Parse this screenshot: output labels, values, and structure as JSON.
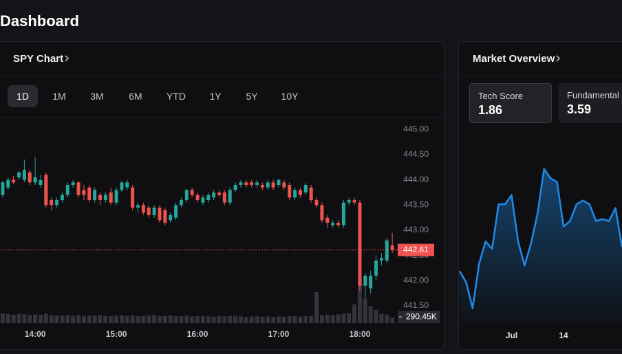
{
  "header": {
    "title": "Dashboard"
  },
  "spy_panel": {
    "title": "SPY Chart",
    "ranges": [
      "1D",
      "1M",
      "3M",
      "6M",
      "YTD",
      "1Y",
      "5Y",
      "10Y"
    ],
    "active_range": 0,
    "chart_data": {
      "type": "candlestick",
      "x": [
        816,
        820,
        824,
        828,
        832,
        836,
        840,
        844,
        848,
        852,
        856,
        860,
        864,
        868,
        872,
        876,
        880,
        884,
        888,
        892,
        896,
        900,
        904,
        908,
        912,
        916,
        920,
        924,
        928,
        932,
        936,
        940,
        944,
        948,
        952,
        956,
        960,
        964,
        968,
        972,
        976,
        980,
        984,
        988,
        992,
        996,
        1000,
        1004,
        1008,
        1012,
        1016,
        1020,
        1024,
        1028,
        1032,
        1036,
        1040,
        1044,
        1048,
        1052,
        1056,
        1060,
        1064,
        1068,
        1072,
        1076,
        1080,
        1084,
        1088,
        1092,
        1096,
        1100,
        1104
      ],
      "open": [
        443.7,
        443.85,
        444.0,
        444.05,
        444.0,
        444.15,
        443.95,
        443.9,
        444.1,
        443.6,
        443.5,
        443.6,
        443.7,
        443.9,
        443.95,
        443.8,
        443.85,
        443.6,
        443.7,
        443.6,
        443.75,
        443.55,
        443.8,
        443.85,
        443.85,
        443.45,
        443.5,
        443.45,
        443.3,
        443.45,
        443.4,
        443.2,
        443.25,
        443.5,
        443.6,
        443.8,
        443.7,
        443.55,
        443.6,
        443.65,
        443.75,
        443.75,
        443.55,
        443.8,
        443.9,
        443.95,
        443.95,
        443.9,
        443.9,
        443.85,
        443.95,
        443.9,
        443.95,
        443.9,
        443.65,
        443.8,
        443.75,
        443.85,
        443.6,
        443.5,
        443.25,
        443.1,
        443.15,
        443.1,
        443.55,
        443.6,
        443.55,
        441.9,
        441.85,
        442.1,
        442.4,
        442.4,
        442.7
      ],
      "high": [
        443.98,
        444.05,
        444.08,
        444.18,
        444.4,
        444.2,
        444.45,
        444.1,
        444.15,
        443.65,
        443.65,
        443.75,
        443.95,
        444.0,
        443.98,
        443.9,
        443.9,
        443.85,
        443.75,
        443.75,
        443.85,
        443.85,
        443.98,
        444.0,
        443.9,
        443.55,
        443.55,
        443.5,
        443.5,
        443.5,
        443.45,
        443.35,
        443.55,
        443.65,
        443.82,
        443.85,
        443.75,
        443.7,
        443.75,
        443.8,
        443.8,
        443.8,
        443.85,
        443.95,
        444.0,
        444.0,
        444.0,
        444.0,
        443.95,
        444.0,
        444.0,
        444.02,
        444.0,
        443.95,
        443.85,
        443.85,
        443.95,
        443.9,
        443.65,
        443.55,
        443.3,
        443.2,
        443.2,
        443.6,
        443.65,
        443.65,
        443.6,
        442.15,
        442.2,
        442.5,
        442.55,
        442.85,
        442.95
      ],
      "low": [
        443.65,
        443.8,
        443.92,
        444.0,
        443.95,
        443.9,
        443.9,
        443.85,
        443.45,
        443.4,
        443.45,
        443.55,
        443.65,
        443.85,
        443.65,
        443.6,
        443.55,
        443.55,
        443.5,
        443.55,
        443.5,
        443.5,
        443.75,
        443.8,
        443.4,
        443.35,
        443.3,
        443.25,
        443.25,
        443.15,
        443.1,
        443.15,
        443.2,
        443.45,
        443.55,
        443.65,
        443.55,
        443.5,
        443.55,
        443.6,
        443.65,
        443.5,
        443.5,
        443.75,
        443.85,
        443.85,
        443.85,
        443.85,
        443.8,
        443.8,
        443.8,
        443.85,
        443.8,
        443.6,
        443.6,
        443.65,
        443.7,
        443.55,
        443.45,
        443.15,
        443.05,
        443.05,
        443.05,
        443.05,
        443.5,
        443.5,
        441.8,
        441.65,
        441.75,
        442.0,
        442.3,
        442.35,
        442.55
      ],
      "close": [
        443.95,
        444.0,
        443.95,
        444.15,
        444.2,
        443.95,
        444.05,
        444.0,
        443.5,
        443.5,
        443.6,
        443.7,
        443.9,
        443.95,
        443.7,
        443.7,
        443.6,
        443.8,
        443.6,
        443.7,
        443.55,
        443.8,
        443.95,
        443.95,
        443.45,
        443.5,
        443.35,
        443.3,
        443.45,
        443.2,
        443.15,
        443.3,
        443.5,
        443.6,
        443.8,
        443.7,
        443.6,
        443.65,
        443.7,
        443.75,
        443.7,
        443.55,
        443.8,
        443.9,
        443.95,
        443.9,
        443.9,
        443.95,
        443.85,
        443.95,
        443.85,
        444.0,
        443.85,
        443.65,
        443.8,
        443.7,
        443.9,
        443.6,
        443.5,
        443.2,
        443.15,
        443.15,
        443.1,
        443.55,
        443.6,
        443.55,
        441.9,
        442.1,
        442.1,
        442.4,
        442.45,
        442.8,
        442.61
      ],
      "volume": [
        520000,
        480000,
        450000,
        500000,
        470000,
        430000,
        460000,
        440000,
        500000,
        420000,
        410000,
        400000,
        430000,
        390000,
        420000,
        380000,
        400000,
        410000,
        430000,
        390000,
        370000,
        400000,
        420000,
        380000,
        410000,
        360000,
        380000,
        400000,
        420000,
        370000,
        390000,
        410000,
        380000,
        360000,
        400000,
        350000,
        370000,
        390000,
        360000,
        340000,
        380000,
        350000,
        370000,
        390000,
        360000,
        330000,
        350000,
        370000,
        340000,
        360000,
        330000,
        350000,
        340000,
        360000,
        380000,
        350000,
        370000,
        390000,
        1650000,
        420000,
        450000,
        430000,
        460000,
        500000,
        520000,
        1000000,
        2200000,
        1300000,
        900000,
        700000,
        500000,
        450000,
        290450
      ],
      "xlim": [
        814,
        1108
      ],
      "xticks": [
        {
          "value": 840,
          "label": "14:00"
        },
        {
          "value": 900,
          "label": "15:00"
        },
        {
          "value": 960,
          "label": "16:00"
        },
        {
          "value": 1020,
          "label": "17:00"
        },
        {
          "value": 1080,
          "label": "18:00"
        }
      ],
      "ylim": [
        441.16,
        445.25
      ],
      "yticks": [
        {
          "value": 445,
          "label": "445.00"
        },
        {
          "value": 444.5,
          "label": "444.50"
        },
        {
          "value": 444,
          "label": "444.00"
        },
        {
          "value": 443.5,
          "label": "443.50"
        },
        {
          "value": 443,
          "label": "443.00"
        },
        {
          "value": 442.5,
          "label": "442.50"
        },
        {
          "value": 442,
          "label": "442.00"
        },
        {
          "value": 441.5,
          "label": "441.50"
        }
      ],
      "volume_lim": [
        0,
        11000000
      ],
      "last_price": 442.61,
      "last_volume": {
        "value": 290450,
        "label": "290.45K"
      },
      "up_color": "#26a69a",
      "down_color": "#ef5350",
      "volume_color": "#34343a",
      "grid": false
    }
  },
  "overview_panel": {
    "title": "Market Overview",
    "scores": [
      {
        "label": "Tech Score",
        "value": 1.86
      },
      {
        "label": "Fundamental S",
        "value": 3.59
      }
    ],
    "chart_data": {
      "type": "line",
      "categories": [
        null,
        null,
        null,
        null,
        null,
        null,
        null,
        null,
        "Jul",
        null,
        null,
        null,
        null,
        null,
        null,
        null,
        "14",
        null,
        null,
        null,
        null,
        null,
        null,
        null,
        null,
        null
      ],
      "values": [
        28,
        22,
        8,
        32,
        44,
        40,
        64,
        64,
        69,
        44,
        31,
        43,
        59,
        83,
        78,
        76,
        52,
        55,
        64,
        66,
        64,
        55,
        56,
        55,
        62,
        41
      ],
      "ylim": [
        0,
        100
      ],
      "color": "#1e88e5",
      "area": true
    }
  }
}
